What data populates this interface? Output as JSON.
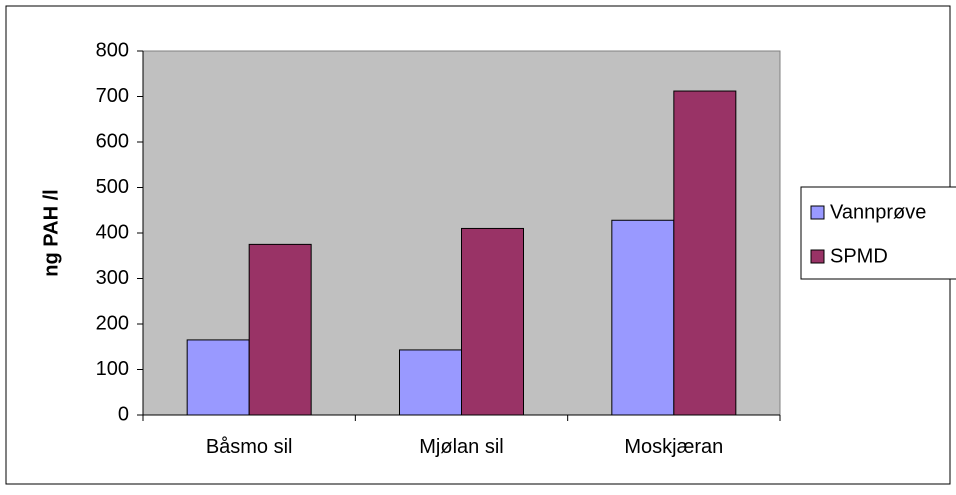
{
  "chart_data": {
    "type": "bar",
    "title": "",
    "xlabel": "",
    "ylabel": "ng PAH /l",
    "categories": [
      "Båsmo sil",
      "Mjølan sil",
      "Moskjæran"
    ],
    "series": [
      {
        "name": "Vannprøve",
        "values": [
          165,
          143,
          428
        ],
        "color": "#9999ff"
      },
      {
        "name": "SPMD",
        "values": [
          375,
          410,
          712
        ],
        "color": "#993366"
      }
    ],
    "ylim": [
      0,
      800
    ],
    "yticks": [
      0,
      100,
      200,
      300,
      400,
      500,
      600,
      700,
      800
    ],
    "grid": false,
    "plot_background": "#c0c0c0",
    "legend_position": "right"
  }
}
